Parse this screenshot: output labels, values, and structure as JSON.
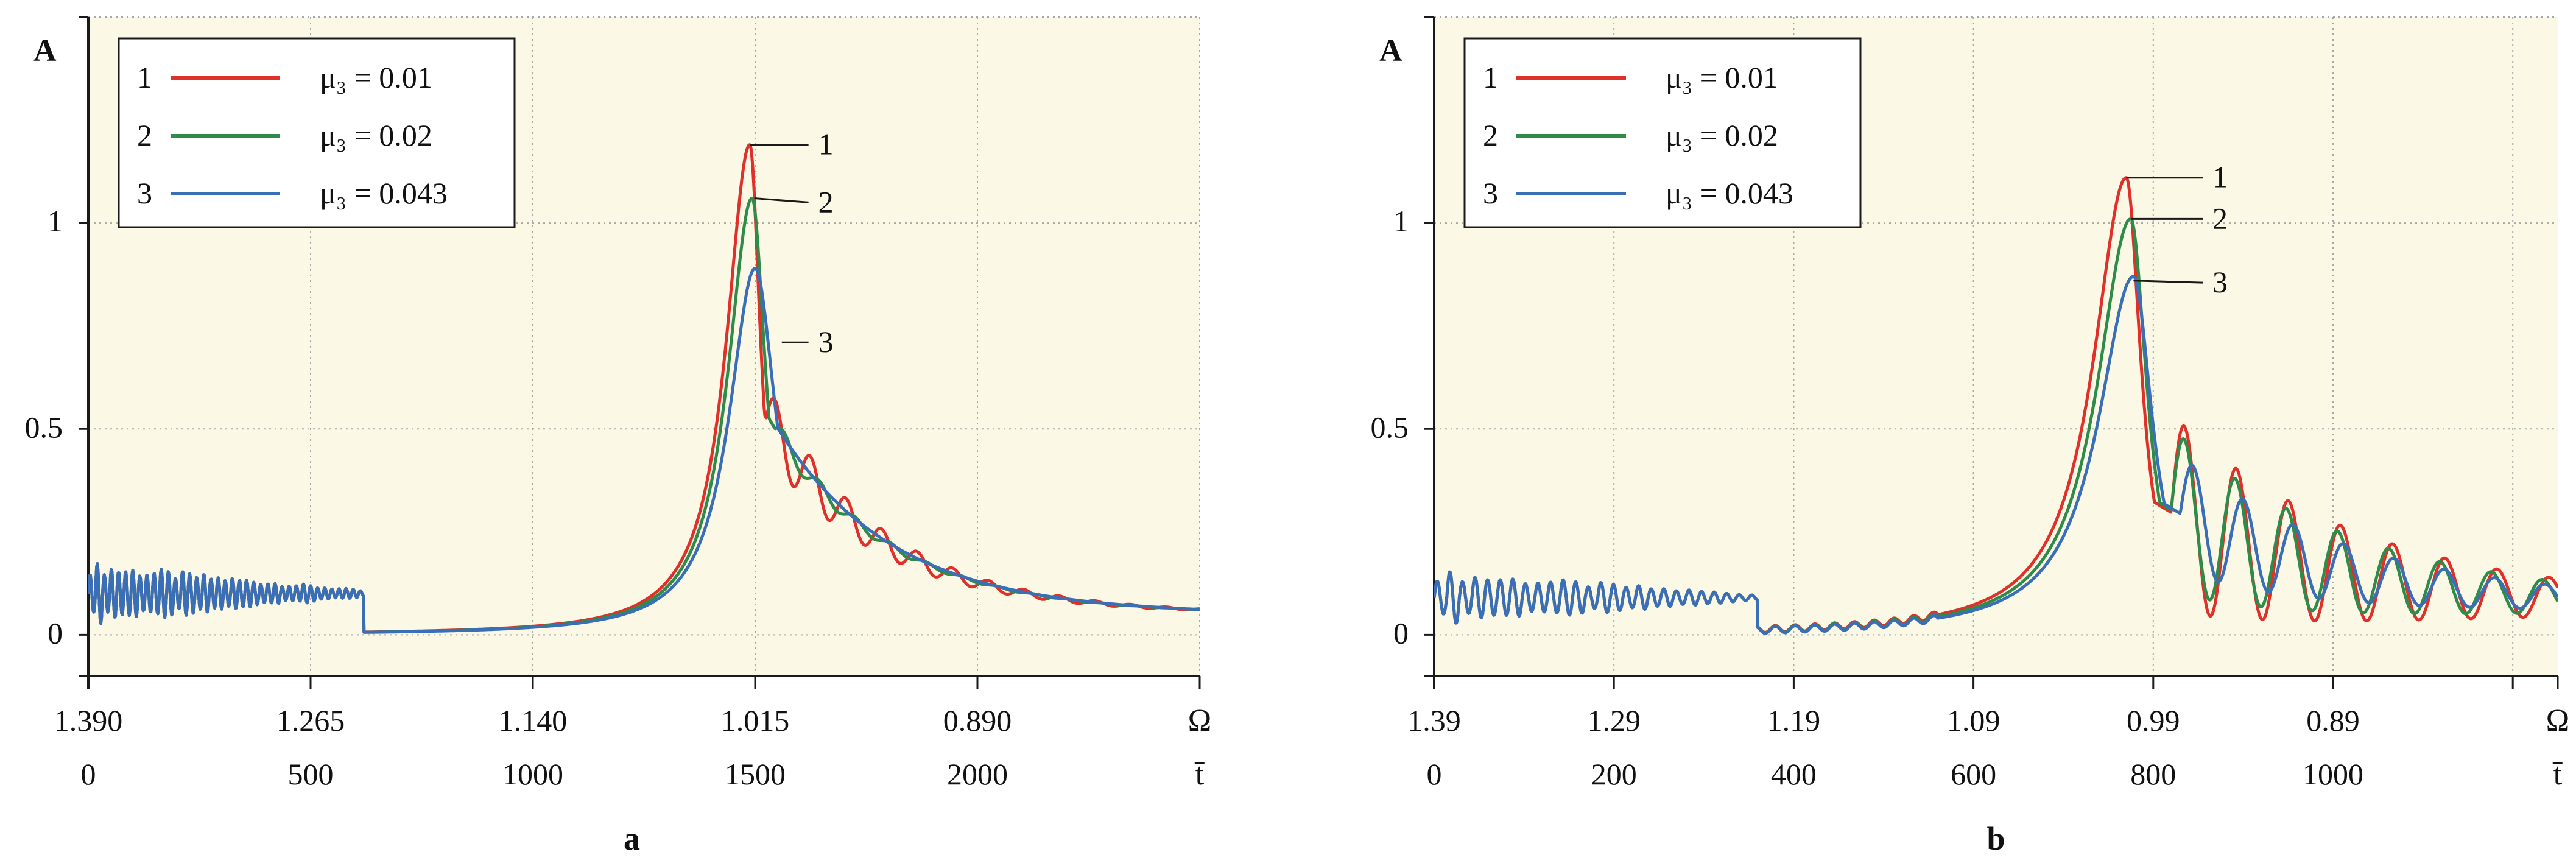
{
  "colors": {
    "plot_bg": "#fbf8e6",
    "grid": "#a8a8a8",
    "axis": "#1a1a1a",
    "red": "#e0302a",
    "green": "#2e8b4a",
    "blue": "#3a6fb8",
    "text": "#111111"
  },
  "chart_data": [
    {
      "type": "line",
      "panel_label": "a",
      "ylabel": "A",
      "x_axis_label_1": "Ω",
      "x_axis_label_2": "t̄",
      "ylim": [
        -0.1,
        1.5
      ],
      "y_ticks": [
        0,
        0.5,
        1
      ],
      "y_tick_labels": [
        "0",
        "0.5",
        "1"
      ],
      "t_range": [
        0,
        2500
      ],
      "x_ticks_t": [
        0,
        500,
        1000,
        1500,
        2000,
        2500
      ],
      "omega_tick_labels": [
        "1.390",
        "1.265",
        "1.140",
        "1.015",
        "0.890"
      ],
      "t_tick_labels": [
        "0",
        "500",
        "1000",
        "1500",
        "2000"
      ],
      "grid": true,
      "legend": {
        "position": "top-left",
        "entries": [
          {
            "num": "1",
            "label": "μ₃ = 0.01",
            "color_key": "red"
          },
          {
            "num": "2",
            "label": "μ₃ = 0.02",
            "color_key": "green"
          },
          {
            "num": "3",
            "label": "μ₃ = 0.043",
            "color_key": "blue"
          }
        ]
      },
      "peak_labels": [
        {
          "num": "1",
          "t": 1488,
          "y": 1.19,
          "label_t": 1620,
          "label_y": 1.19
        },
        {
          "num": "2",
          "t": 1498,
          "y": 1.06,
          "label_t": 1620,
          "label_y": 1.05
        },
        {
          "num": "3",
          "t": 1560,
          "y": 0.71,
          "label_t": 1620,
          "label_y": 0.71
        }
      ],
      "series": [
        {
          "name": "μ₃ = 0.01",
          "color_key": "red",
          "peak": 1.19,
          "t_peak": 1488,
          "w_left": 65,
          "w_right": 30,
          "osc_amp": 0.085,
          "osc_decay": 260,
          "osc_period": 80,
          "osc_start": 1525
        },
        {
          "name": "μ₃ = 0.02",
          "color_key": "green",
          "peak": 1.06,
          "t_peak": 1493,
          "w_left": 67,
          "w_right": 38,
          "osc_amp": 0.028,
          "osc_decay": 200,
          "osc_period": 80,
          "osc_start": 1545
        },
        {
          "name": "μ₃ = 0.043",
          "color_key": "blue",
          "peak": 0.89,
          "t_peak": 1500,
          "w_left": 72,
          "w_right": 58,
          "osc_amp": 0.0,
          "osc_decay": 200,
          "osc_period": 80,
          "osc_start": 1600
        }
      ]
    },
    {
      "type": "line",
      "panel_label": "b",
      "ylabel": "A",
      "x_axis_label_1": "Ω",
      "x_axis_label_2": "t̄",
      "ylim": [
        -0.1,
        1.5
      ],
      "y_ticks": [
        0,
        0.5,
        1
      ],
      "y_tick_labels": [
        "0",
        "0.5",
        "1"
      ],
      "t_range": [
        0,
        1250
      ],
      "x_ticks_t": [
        0,
        200,
        400,
        600,
        800,
        1000,
        1200
      ],
      "omega_tick_labels": [
        "1.39",
        "1.29",
        "1.19",
        "1.09",
        "0.99",
        "0.89"
      ],
      "t_tick_labels": [
        "0",
        "200",
        "400",
        "600",
        "800",
        "1000"
      ],
      "grid": true,
      "legend": {
        "position": "top-left",
        "entries": [
          {
            "num": "1",
            "label": "μ₃ = 0.01",
            "color_key": "red"
          },
          {
            "num": "2",
            "label": "μ₃ = 0.02",
            "color_key": "green"
          },
          {
            "num": "3",
            "label": "μ₃ = 0.043",
            "color_key": "blue"
          }
        ]
      },
      "peak_labels": [
        {
          "num": "1",
          "t": 770,
          "y": 1.11,
          "label_t": 855,
          "label_y": 1.11
        },
        {
          "num": "2",
          "t": 775,
          "y": 1.01,
          "label_t": 855,
          "label_y": 1.01
        },
        {
          "num": "3",
          "t": 778,
          "y": 0.86,
          "label_t": 855,
          "label_y": 0.855
        }
      ],
      "series": [
        {
          "name": "μ₃ = 0.01",
          "color_key": "red",
          "peak": 1.11,
          "t_peak": 770,
          "w_left": 45,
          "w_right": 20,
          "osc_amp": 0.24,
          "osc_decay": 260,
          "osc_period": 58,
          "osc_start": 820
        },
        {
          "name": "μ₃ = 0.02",
          "color_key": "green",
          "peak": 1.01,
          "t_peak": 775,
          "w_left": 46,
          "w_right": 22,
          "osc_amp": 0.2,
          "osc_decay": 260,
          "osc_period": 57,
          "osc_start": 820
        },
        {
          "name": "μ₃ = 0.043",
          "color_key": "blue",
          "peak": 0.87,
          "t_peak": 778,
          "w_left": 48,
          "w_right": 26,
          "osc_amp": 0.14,
          "osc_decay": 260,
          "osc_period": 56,
          "osc_start": 830
        }
      ]
    }
  ]
}
